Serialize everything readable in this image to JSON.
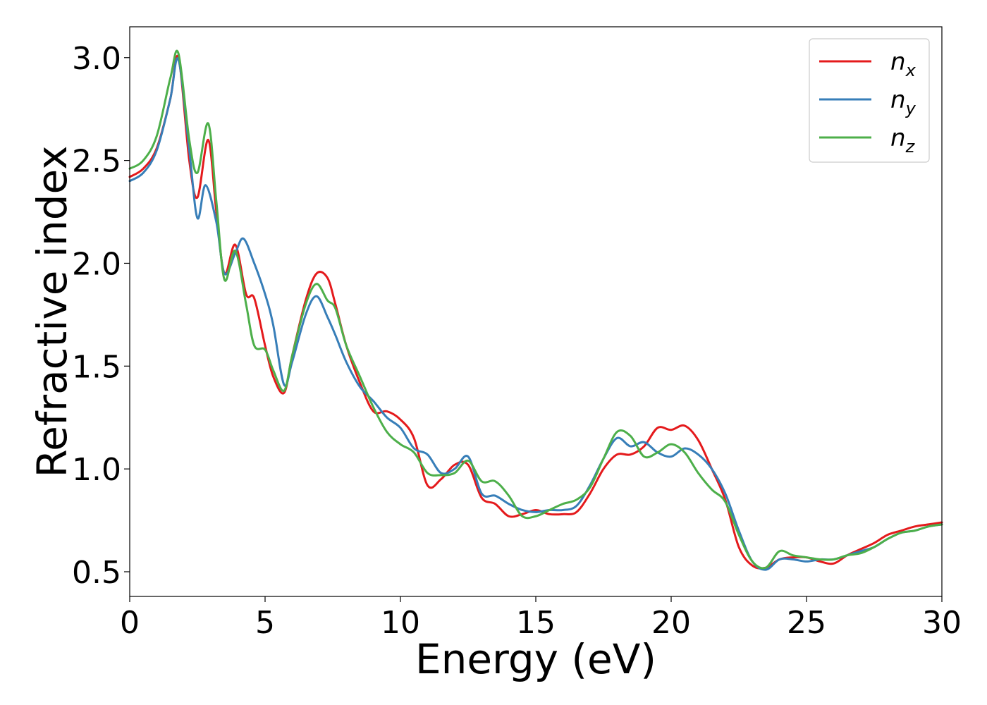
{
  "chart_data": {
    "type": "line",
    "title": "",
    "xlabel": "Energy (eV)",
    "ylabel": "Refractive index",
    "xlim": [
      0,
      30
    ],
    "ylim": [
      0.38,
      3.15
    ],
    "xticks": [
      0,
      5,
      10,
      15,
      20,
      25,
      30
    ],
    "xtick_labels": [
      "0",
      "5",
      "10",
      "15",
      "20",
      "25",
      "30"
    ],
    "yticks": [
      0.5,
      1.0,
      1.5,
      2.0,
      2.5,
      3.0
    ],
    "ytick_labels": [
      "0.5",
      "1.0",
      "1.5",
      "2.0",
      "2.5",
      "3.0"
    ],
    "grid": false,
    "legend_position": "top-right",
    "series": [
      {
        "name": "n",
        "subscript": "x",
        "color": "#e41a1c",
        "x": [
          0,
          0.5,
          1.0,
          1.5,
          1.8,
          2.2,
          2.5,
          2.9,
          3.2,
          3.5,
          3.9,
          4.3,
          4.6,
          5.0,
          5.3,
          5.7,
          6.0,
          6.5,
          6.9,
          7.3,
          7.6,
          8.0,
          8.5,
          9.0,
          9.5,
          10.0,
          10.5,
          11.0,
          11.5,
          12.0,
          12.5,
          13.0,
          13.5,
          14.0,
          14.5,
          15.0,
          15.5,
          16.0,
          16.5,
          17.0,
          17.5,
          18.0,
          18.5,
          19.0,
          19.5,
          20.0,
          20.5,
          21.0,
          21.5,
          22.0,
          22.5,
          23.0,
          23.5,
          24.0,
          24.5,
          25.0,
          25.5,
          26.0,
          26.5,
          27.0,
          27.5,
          28.0,
          28.5,
          29.0,
          29.5,
          30.0
        ],
        "y": [
          2.42,
          2.46,
          2.56,
          2.8,
          3.0,
          2.5,
          2.32,
          2.6,
          2.25,
          1.95,
          2.09,
          1.85,
          1.83,
          1.6,
          1.45,
          1.37,
          1.55,
          1.82,
          1.95,
          1.93,
          1.8,
          1.6,
          1.42,
          1.28,
          1.28,
          1.24,
          1.15,
          0.92,
          0.95,
          1.02,
          1.02,
          0.86,
          0.83,
          0.77,
          0.78,
          0.8,
          0.78,
          0.78,
          0.79,
          0.88,
          1.0,
          1.07,
          1.07,
          1.11,
          1.2,
          1.19,
          1.21,
          1.14,
          1.0,
          0.85,
          0.62,
          0.53,
          0.52,
          0.56,
          0.57,
          0.57,
          0.55,
          0.54,
          0.58,
          0.61,
          0.64,
          0.68,
          0.7,
          0.72,
          0.73,
          0.74
        ]
      },
      {
        "name": "n",
        "subscript": "y",
        "color": "#377eb8",
        "x": [
          0,
          0.5,
          1.0,
          1.5,
          1.8,
          2.2,
          2.5,
          2.8,
          3.2,
          3.5,
          3.9,
          4.2,
          4.6,
          5.0,
          5.3,
          5.7,
          6.0,
          6.5,
          6.9,
          7.3,
          7.6,
          8.0,
          8.5,
          9.0,
          9.5,
          10.0,
          10.5,
          11.0,
          11.5,
          12.0,
          12.5,
          13.0,
          13.5,
          14.0,
          14.5,
          15.0,
          15.5,
          16.0,
          16.5,
          17.0,
          17.5,
          18.0,
          18.5,
          19.0,
          19.5,
          20.0,
          20.5,
          21.0,
          21.5,
          22.0,
          22.5,
          23.0,
          23.5,
          24.0,
          24.5,
          25.0,
          25.5,
          26.0,
          26.5,
          27.0,
          27.5,
          28.0,
          28.5,
          29.0,
          29.5,
          30.0
        ],
        "y": [
          2.4,
          2.44,
          2.55,
          2.8,
          2.99,
          2.55,
          2.22,
          2.38,
          2.2,
          1.95,
          2.05,
          2.12,
          2.0,
          1.85,
          1.7,
          1.41,
          1.52,
          1.75,
          1.84,
          1.74,
          1.65,
          1.52,
          1.4,
          1.33,
          1.25,
          1.2,
          1.1,
          1.07,
          0.98,
          1.0,
          1.06,
          0.88,
          0.87,
          0.83,
          0.8,
          0.79,
          0.8,
          0.8,
          0.82,
          0.92,
          1.05,
          1.15,
          1.11,
          1.13,
          1.08,
          1.06,
          1.1,
          1.07,
          1.0,
          0.88,
          0.7,
          0.55,
          0.51,
          0.56,
          0.56,
          0.55,
          0.56,
          0.56,
          0.58,
          0.6,
          0.62,
          0.66,
          0.69,
          0.7,
          0.72,
          0.73
        ]
      },
      {
        "name": "n",
        "subscript": "z",
        "color": "#4daf4a",
        "x": [
          0,
          0.5,
          1.0,
          1.5,
          1.8,
          2.2,
          2.5,
          2.9,
          3.2,
          3.5,
          3.9,
          4.3,
          4.6,
          5.0,
          5.3,
          5.7,
          6.0,
          6.5,
          6.9,
          7.3,
          7.6,
          8.0,
          8.5,
          9.0,
          9.5,
          10.0,
          10.5,
          11.0,
          11.5,
          12.0,
          12.5,
          13.0,
          13.5,
          14.0,
          14.5,
          15.0,
          15.5,
          16.0,
          16.5,
          17.0,
          17.5,
          18.0,
          18.5,
          19.0,
          19.5,
          20.0,
          20.5,
          21.0,
          21.5,
          22.0,
          22.5,
          23.0,
          23.5,
          24.0,
          24.5,
          25.0,
          25.5,
          26.0,
          26.5,
          27.0,
          27.5,
          28.0,
          28.5,
          29.0,
          29.5,
          30.0
        ],
        "y": [
          2.46,
          2.5,
          2.62,
          2.9,
          3.02,
          2.6,
          2.44,
          2.68,
          2.3,
          1.92,
          2.06,
          1.8,
          1.6,
          1.58,
          1.48,
          1.38,
          1.55,
          1.8,
          1.9,
          1.82,
          1.78,
          1.6,
          1.45,
          1.3,
          1.18,
          1.12,
          1.08,
          0.98,
          0.97,
          0.98,
          1.04,
          0.94,
          0.94,
          0.87,
          0.77,
          0.77,
          0.8,
          0.83,
          0.85,
          0.91,
          1.05,
          1.18,
          1.16,
          1.06,
          1.08,
          1.12,
          1.08,
          0.98,
          0.9,
          0.84,
          0.68,
          0.55,
          0.52,
          0.6,
          0.58,
          0.57,
          0.56,
          0.56,
          0.58,
          0.59,
          0.62,
          0.66,
          0.69,
          0.7,
          0.72,
          0.73
        ]
      }
    ]
  }
}
